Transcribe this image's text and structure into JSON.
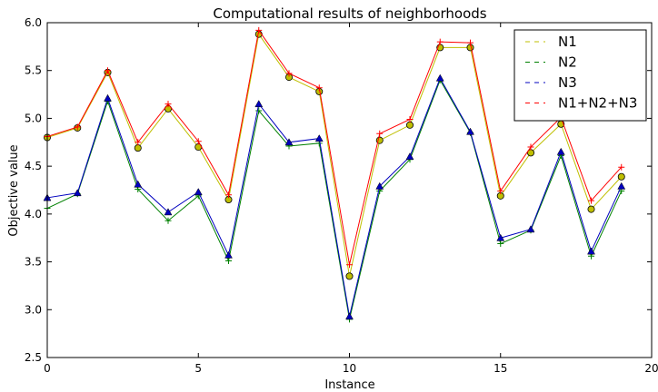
{
  "chart_data": {
    "type": "line",
    "title": "Computational results of neighborhoods",
    "xlabel": "Instance",
    "ylabel": "Objective value",
    "xlim": [
      0,
      20
    ],
    "ylim": [
      2.5,
      6.0
    ],
    "xticks": [
      "0",
      "5",
      "10",
      "15",
      "20"
    ],
    "yticks": [
      "2.5",
      "3.0",
      "3.5",
      "4.0",
      "4.5",
      "5.0",
      "5.5",
      "6.0"
    ],
    "grid": false,
    "legend": "top-right",
    "x": [
      0,
      1,
      2,
      3,
      4,
      5,
      6,
      7,
      8,
      9,
      10,
      11,
      12,
      13,
      14,
      15,
      16,
      17,
      18,
      19
    ],
    "series": [
      {
        "name": "N1",
        "color": "#bfbf00",
        "marker": "circle",
        "values": [
          4.8,
          4.9,
          5.48,
          4.69,
          5.1,
          4.7,
          4.15,
          5.88,
          5.43,
          5.28,
          3.35,
          4.77,
          4.93,
          5.74,
          5.74,
          4.19,
          4.64,
          4.94,
          4.05,
          4.39
        ]
      },
      {
        "name": "N2",
        "color": "#008000",
        "marker": "plus",
        "values": [
          4.06,
          4.21,
          5.18,
          4.26,
          3.93,
          4.19,
          3.51,
          5.08,
          4.71,
          4.74,
          2.9,
          4.24,
          4.57,
          5.4,
          4.85,
          3.69,
          3.83,
          4.61,
          3.56,
          4.24
        ]
      },
      {
        "name": "N3",
        "color": "#0000bf",
        "marker": "triangle",
        "values": [
          4.17,
          4.22,
          5.21,
          4.31,
          4.02,
          4.23,
          3.57,
          5.15,
          4.75,
          4.79,
          2.93,
          4.29,
          4.6,
          5.42,
          4.86,
          3.75,
          3.84,
          4.65,
          3.61,
          4.29
        ]
      },
      {
        "name": "N1+N2+N3",
        "color": "#ff0000",
        "marker": "plus",
        "values": [
          4.81,
          4.91,
          5.5,
          4.75,
          5.15,
          4.76,
          4.2,
          5.92,
          5.47,
          5.32,
          3.47,
          4.84,
          4.99,
          5.8,
          5.79,
          4.24,
          4.7,
          5.01,
          4.14,
          4.49
        ]
      }
    ]
  }
}
